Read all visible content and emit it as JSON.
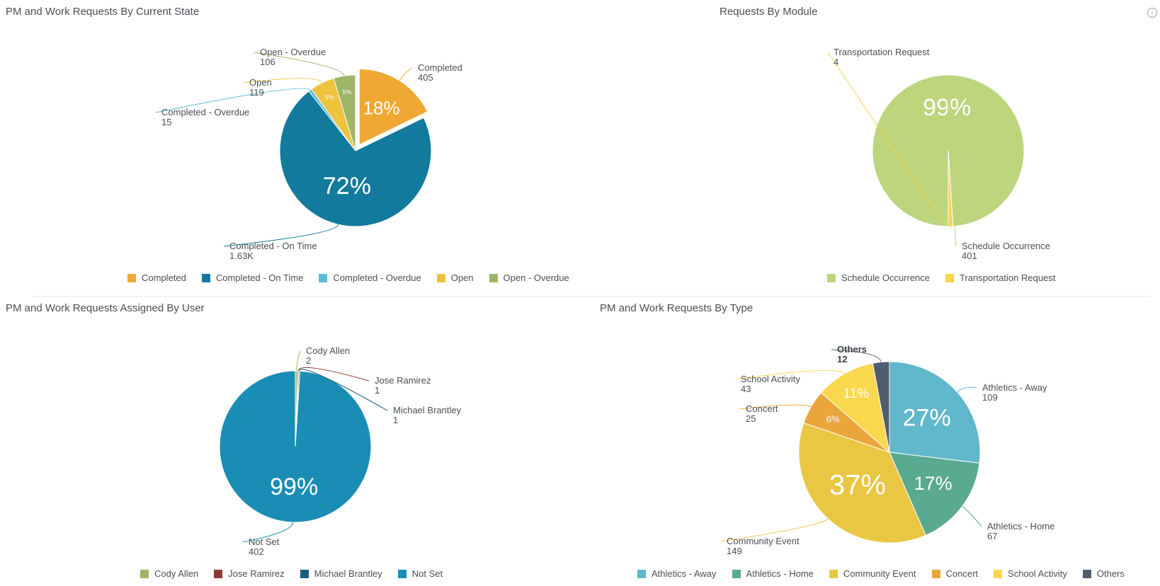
{
  "panels": {
    "state_title": "PM and Work Requests By Current State",
    "module_title": "Requests By Module",
    "user_title": "PM and Work Requests Assigned By User",
    "type_title": "PM and Work Requests By Type",
    "info_icon": "info-icon"
  },
  "chart_data": [
    {
      "type": "pie",
      "title": "PM and Work Requests By Current State",
      "legend_position": "bottom",
      "series": [
        {
          "values": [
            405,
            1630,
            15,
            119,
            106
          ]
        }
      ],
      "categories": [
        "Completed",
        "Completed - On Time",
        "Completed - Overdue",
        "Open",
        "Open - Overdue"
      ],
      "value_labels": [
        "405",
        "1.63K",
        "15",
        "119",
        "106"
      ],
      "percent_labels": [
        "18%",
        "72%",
        "",
        "5%",
        "5%"
      ],
      "colors": [
        "#EFA833",
        "#127A9C",
        "#5BBBD6",
        "#EEC33D",
        "#9DB567"
      ],
      "exploded": "Completed"
    },
    {
      "type": "pie",
      "title": "Requests By Module",
      "legend_position": "bottom",
      "series": [
        {
          "values": [
            401,
            4
          ]
        }
      ],
      "categories": [
        "Schedule Occurrence",
        "Transportation Request"
      ],
      "value_labels": [
        "401",
        "4"
      ],
      "percent_labels": [
        "99%",
        ""
      ],
      "colors": [
        "#BDD57D",
        "#F6D64B"
      ]
    },
    {
      "type": "pie",
      "title": "PM and Work Requests Assigned By User",
      "legend_position": "bottom",
      "series": [
        {
          "values": [
            2,
            1,
            1,
            402
          ]
        }
      ],
      "categories": [
        "Cody Allen",
        "Jose Ramirez",
        "Michael Brantley",
        "Not Set"
      ],
      "value_labels": [
        "2",
        "1",
        "1",
        "402"
      ],
      "percent_labels": [
        "",
        "",
        "",
        "99%"
      ],
      "colors": [
        "#9DB567",
        "#8C3A35",
        "#1D5E7E",
        "#1A8DB5"
      ]
    },
    {
      "type": "pie",
      "title": "PM and Work Requests By Type",
      "legend_position": "bottom",
      "series": [
        {
          "values": [
            109,
            67,
            149,
            25,
            43,
            12
          ]
        }
      ],
      "categories": [
        "Athletics - Away",
        "Athletics - Home",
        "Community Event",
        "Concert",
        "School Activity",
        "Others"
      ],
      "value_labels": [
        "109",
        "67",
        "149",
        "25",
        "43",
        "12"
      ],
      "percent_labels": [
        "27%",
        "17%",
        "37%",
        "6%",
        "11%",
        ""
      ],
      "colors": [
        "#61B7CC",
        "#5AA991",
        "#E9C743",
        "#EBA63B",
        "#FAD84E",
        "#4F5E6F"
      ],
      "bold_labels": [
        "Others"
      ]
    }
  ]
}
